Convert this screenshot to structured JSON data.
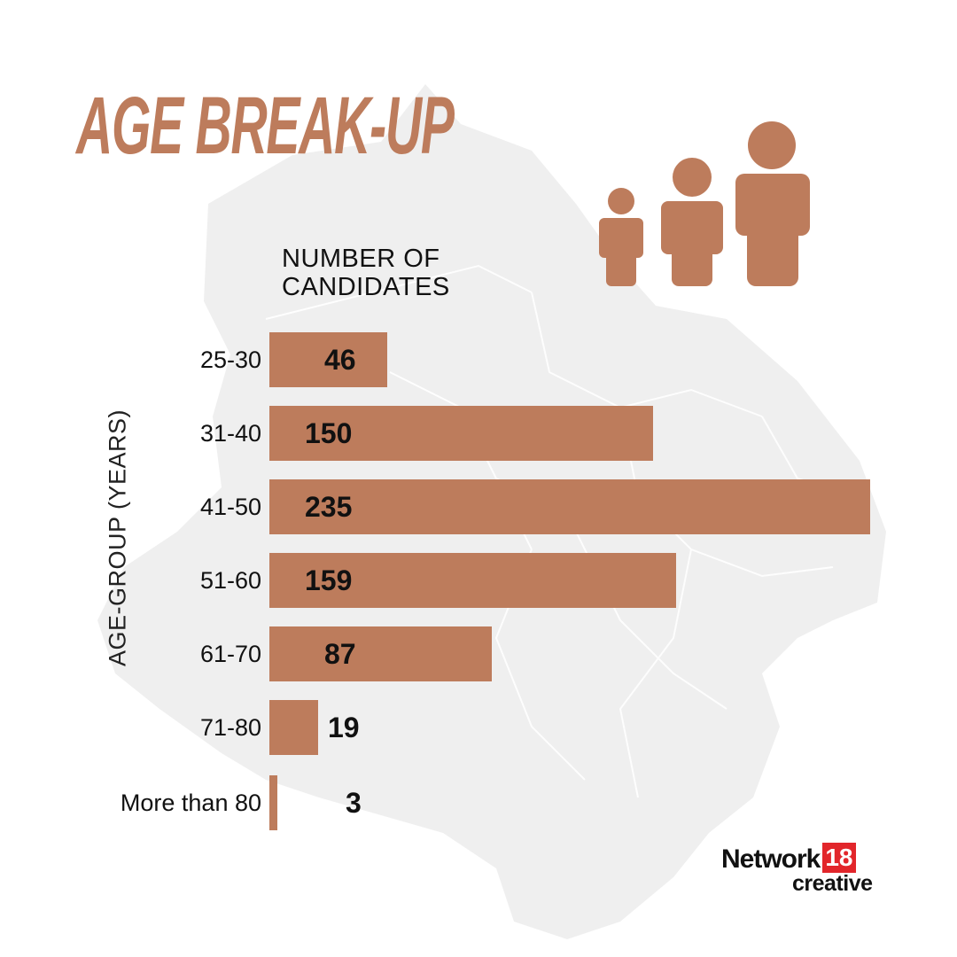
{
  "title": "AGE BREAK-UP",
  "colors": {
    "accent": "#bd7c5c",
    "text": "#111111",
    "map": "#efefef",
    "logo_red": "#e2262b"
  },
  "header": {
    "line1": "NUMBER OF",
    "line2": "CANDIDATES"
  },
  "axis_label": "AGE-GROUP (YEARS)",
  "icons": [
    "person-small-icon",
    "person-medium-icon",
    "person-large-icon"
  ],
  "logo": {
    "brand": "Network",
    "badge": "18",
    "sub": "creative"
  },
  "chart_data": {
    "type": "bar",
    "orientation": "horizontal",
    "title": "AGE BREAK-UP",
    "xlabel": "NUMBER OF CANDIDATES",
    "ylabel": "AGE-GROUP (YEARS)",
    "categories": [
      "25-30",
      "31-40",
      "41-50",
      "51-60",
      "61-70",
      "71-80",
      "More than 80"
    ],
    "values": [
      46,
      150,
      235,
      159,
      87,
      19,
      3
    ],
    "grid": false,
    "legend": null
  }
}
